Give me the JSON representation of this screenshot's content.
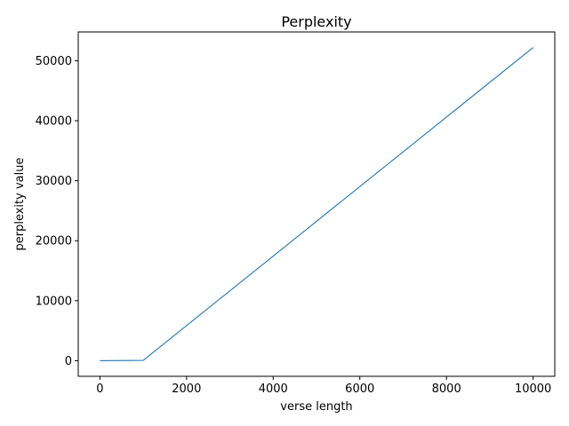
{
  "chart_data": {
    "type": "line",
    "title": "Perplexity",
    "xlabel": "verse length",
    "ylabel": "perplexity value",
    "xlim": [
      -500,
      10500
    ],
    "ylim": [
      -2600,
      54800
    ],
    "xticks": [
      0,
      2000,
      4000,
      6000,
      8000,
      10000
    ],
    "xtick_labels": [
      "0",
      "2000",
      "4000",
      "6000",
      "8000",
      "10000"
    ],
    "yticks": [
      0,
      10000,
      20000,
      30000,
      40000,
      50000
    ],
    "ytick_labels": [
      "0",
      "10000",
      "20000",
      "30000",
      "40000",
      "50000"
    ],
    "grid": false,
    "series": [
      {
        "color": "#1f77b4",
        "x": [
          0,
          1000,
          10000
        ],
        "y": [
          0,
          50,
          52200
        ]
      }
    ]
  }
}
